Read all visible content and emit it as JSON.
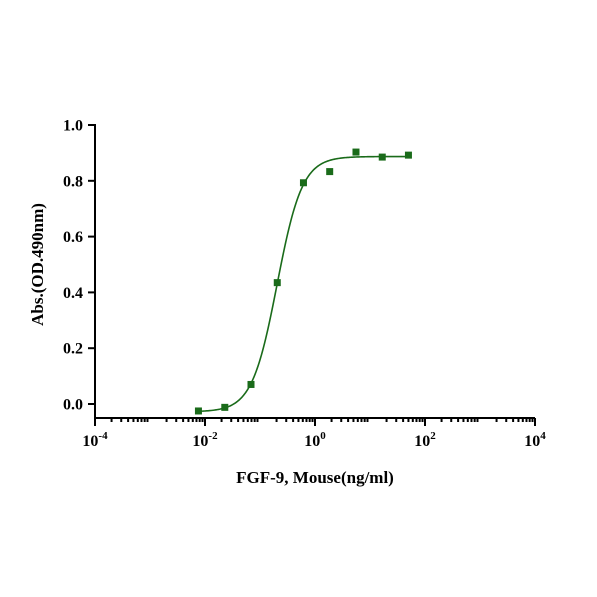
{
  "chart_data": {
    "type": "scatter",
    "xlabel": "FGF-9, Mouse(ng/ml)",
    "ylabel": "Abs.(OD.490nm)",
    "x_scale": "log10",
    "xlim": [
      0.0001,
      10000
    ],
    "ylim": [
      -0.05,
      1.0
    ],
    "x_ticks": [
      {
        "base": "10",
        "exp": "-4"
      },
      {
        "base": "10",
        "exp": "-2"
      },
      {
        "base": "10",
        "exp": "0"
      },
      {
        "base": "10",
        "exp": "2"
      },
      {
        "base": "10",
        "exp": "4"
      }
    ],
    "x_tick_values": [
      0.0001,
      0.01,
      1,
      100,
      10000
    ],
    "y_ticks": [
      "0.0",
      "0.2",
      "0.4",
      "0.6",
      "0.8",
      "1.0"
    ],
    "y_tick_values": [
      0.0,
      0.2,
      0.4,
      0.6,
      0.8,
      1.0
    ],
    "series": [
      {
        "points": [
          {
            "x": 0.0076,
            "y": -0.025
          },
          {
            "x": 0.0229,
            "y": -0.012
          },
          {
            "x": 0.0686,
            "y": 0.07
          },
          {
            "x": 0.206,
            "y": 0.435
          },
          {
            "x": 0.617,
            "y": 0.793
          },
          {
            "x": 1.85,
            "y": 0.833
          },
          {
            "x": 5.56,
            "y": 0.903
          },
          {
            "x": 16.7,
            "y": 0.885
          },
          {
            "x": 50,
            "y": 0.892
          }
        ],
        "fit": {
          "model": "4PL",
          "bottom": -0.028,
          "top": 0.887,
          "ec50": 0.205,
          "hill": 1.9
        },
        "color": "#1a6b1a",
        "marker": "square"
      }
    ],
    "grid": false,
    "legend": "none"
  }
}
